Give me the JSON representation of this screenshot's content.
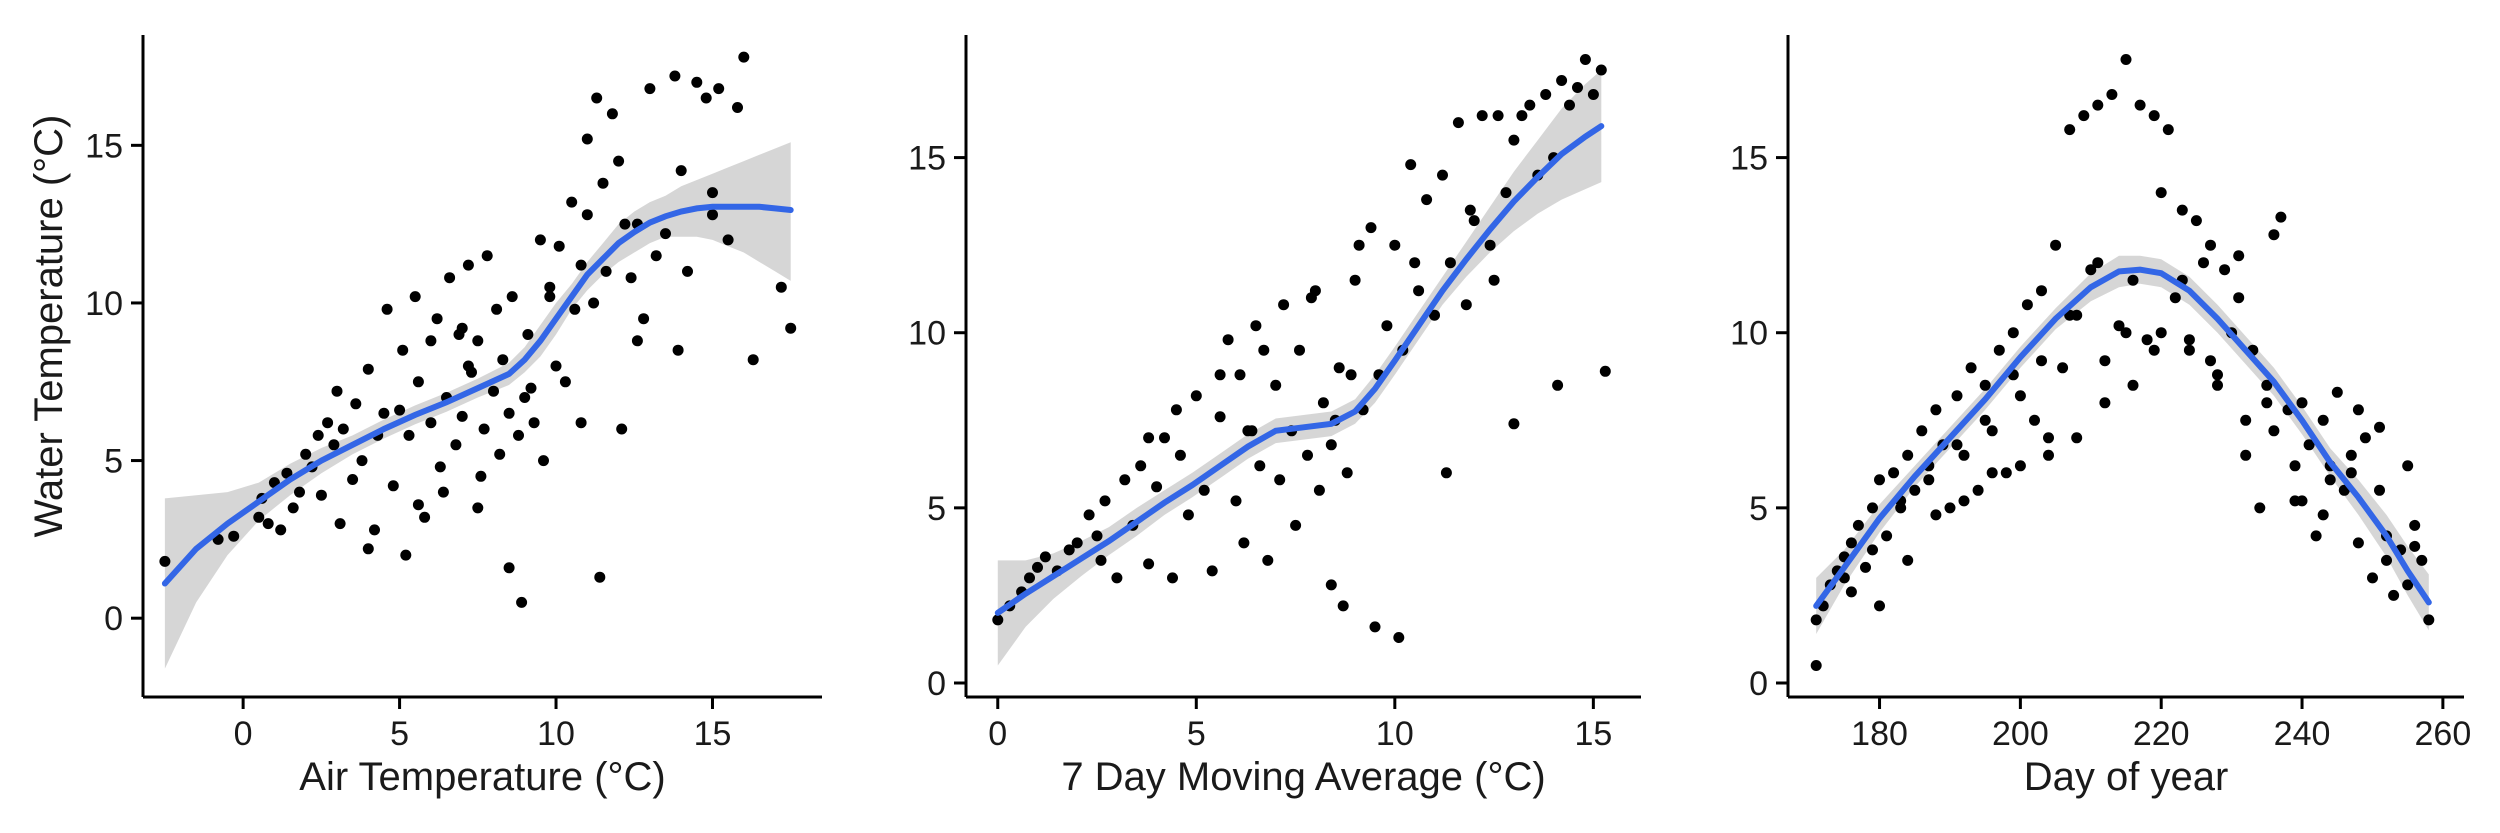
{
  "colors": {
    "points": "#000000",
    "smooth_line": "#3366E6",
    "ci_band": "#D4D4D4",
    "background": "#FFFFFF"
  },
  "chart_data": [
    {
      "type": "scatter",
      "title": "",
      "xlabel": "Air Temperature (°C)",
      "ylabel": "Water Temperature (°C)",
      "xlim": [
        -3.2,
        18.5
      ],
      "ylim": [
        -2.5,
        18.5
      ],
      "xticks": [
        0,
        5,
        10,
        15
      ],
      "yticks": [
        0,
        5,
        10,
        15
      ],
      "grid": false,
      "series": [
        {
          "kind": "points",
          "x": [
            -2.5,
            -0.8,
            -0.3,
            0.5,
            0.6,
            0.8,
            1.0,
            1.2,
            1.4,
            1.6,
            1.8,
            2.0,
            2.2,
            2.4,
            2.5,
            2.7,
            2.9,
            3.0,
            3.2,
            3.5,
            3.6,
            3.8,
            4.0,
            4.2,
            4.3,
            4.5,
            4.6,
            4.8,
            5.0,
            5.1,
            5.2,
            5.3,
            5.5,
            5.6,
            5.8,
            6.0,
            6.0,
            6.2,
            6.3,
            6.5,
            6.6,
            6.8,
            7.0,
            7.0,
            7.2,
            7.3,
            7.5,
            7.5,
            7.7,
            7.8,
            8.0,
            8.1,
            8.2,
            8.3,
            8.5,
            8.6,
            8.8,
            9.0,
            9.1,
            9.3,
            9.5,
            9.6,
            9.8,
            10.0,
            10.1,
            10.3,
            10.5,
            10.6,
            10.8,
            11.0,
            11.0,
            11.2,
            11.3,
            11.5,
            11.6,
            11.8,
            12.0,
            12.2,
            12.4,
            12.6,
            12.8,
            13.0,
            13.2,
            13.5,
            13.8,
            14.0,
            14.2,
            14.5,
            14.8,
            15.0,
            15.2,
            15.5,
            15.8,
            16.0,
            16.3,
            17.2,
            17.5,
            8.5,
            8.9,
            11.4,
            4.0,
            5.6,
            3.1,
            7.2,
            6.4,
            9.8,
            12.1,
            12.6,
            15.0,
            13.9,
            10.8,
            6.9,
            7.6,
            9.2
          ],
          "y": [
            1.8,
            2.5,
            2.6,
            3.2,
            3.8,
            3.0,
            4.3,
            2.8,
            4.6,
            3.5,
            4.0,
            5.2,
            4.8,
            5.8,
            3.9,
            6.2,
            5.5,
            7.2,
            6.0,
            4.4,
            6.8,
            5.0,
            7.9,
            2.8,
            5.8,
            6.5,
            9.8,
            4.2,
            6.6,
            8.5,
            2.0,
            5.8,
            10.2,
            7.5,
            3.2,
            8.8,
            6.2,
            9.5,
            4.8,
            7.0,
            10.8,
            5.5,
            9.2,
            6.4,
            11.2,
            7.8,
            3.5,
            8.8,
            6.0,
            11.5,
            7.2,
            9.8,
            5.2,
            8.2,
            6.5,
            10.2,
            5.8,
            7.0,
            9.0,
            6.2,
            12.0,
            5.0,
            10.5,
            8.0,
            11.8,
            7.5,
            13.2,
            9.8,
            11.2,
            15.2,
            12.8,
            10.0,
            16.5,
            13.8,
            11.0,
            16.0,
            14.5,
            12.5,
            10.8,
            8.8,
            9.5,
            16.8,
            11.5,
            12.2,
            17.2,
            14.2,
            11.0,
            17.0,
            16.5,
            13.5,
            16.8,
            12.0,
            16.2,
            17.8,
            8.2,
            10.5,
            9.2,
            1.6,
            0.5,
            1.3,
            2.2,
            3.6,
            3.0,
            8.0,
            4.0,
            10.2,
            6.0,
            12.5,
            12.8,
            8.5,
            6.2,
            9.0,
            4.5,
            7.3
          ]
        },
        {
          "kind": "smooth",
          "x": [
            -2.5,
            -1.5,
            -0.5,
            0.5,
            1.5,
            2.5,
            3.5,
            4.5,
            5.5,
            6.5,
            7.5,
            8.5,
            9.0,
            9.5,
            10.0,
            10.5,
            11.0,
            11.5,
            12.0,
            12.5,
            13.0,
            13.5,
            14.0,
            14.5,
            15.0,
            15.5,
            16.0,
            16.5,
            17.0,
            17.5
          ],
          "y": [
            1.1,
            2.2,
            3.0,
            3.7,
            4.4,
            5.0,
            5.5,
            6.0,
            6.45,
            6.85,
            7.3,
            7.75,
            8.2,
            8.8,
            9.5,
            10.2,
            10.9,
            11.4,
            11.9,
            12.25,
            12.55,
            12.75,
            12.9,
            13.0,
            13.05,
            13.05,
            13.05,
            13.05,
            13.0,
            12.95
          ],
          "lower": [
            -1.6,
            0.5,
            2.0,
            3.1,
            3.9,
            4.6,
            5.2,
            5.7,
            6.15,
            6.55,
            7.0,
            7.4,
            7.8,
            8.3,
            9.0,
            9.8,
            10.4,
            10.9,
            11.3,
            11.6,
            11.9,
            12.1,
            12.1,
            12.1,
            12.0,
            11.8,
            11.6,
            11.3,
            11.0,
            10.7
          ],
          "upper": [
            3.8,
            3.9,
            4.0,
            4.3,
            4.9,
            5.4,
            5.8,
            6.3,
            6.75,
            7.15,
            7.6,
            8.1,
            8.6,
            9.3,
            10.0,
            10.6,
            11.3,
            11.9,
            12.5,
            12.9,
            13.2,
            13.4,
            13.7,
            13.9,
            14.1,
            14.3,
            14.5,
            14.7,
            14.9,
            15.1
          ]
        }
      ]
    },
    {
      "type": "scatter",
      "title": "",
      "xlabel": "7 Day Moving Average (°C)",
      "ylabel": "",
      "xlim": [
        -0.8,
        16.2
      ],
      "ylim": [
        -0.4,
        18.5
      ],
      "xticks": [
        0,
        5,
        10,
        15
      ],
      "yticks": [
        0,
        5,
        10,
        15
      ],
      "grid": false,
      "series": [
        {
          "kind": "points",
          "x": [
            0.0,
            0.3,
            0.6,
            0.8,
            1.0,
            1.2,
            1.5,
            1.8,
            2.0,
            2.3,
            2.5,
            2.7,
            3.0,
            3.2,
            3.4,
            3.6,
            3.8,
            4.0,
            4.2,
            4.4,
            4.6,
            4.8,
            5.0,
            5.2,
            5.4,
            5.6,
            5.8,
            6.0,
            6.1,
            6.2,
            6.4,
            6.5,
            6.6,
            6.8,
            7.0,
            7.1,
            7.2,
            7.4,
            7.5,
            7.6,
            7.8,
            8.0,
            8.1,
            8.2,
            8.4,
            8.5,
            8.6,
            8.8,
            9.0,
            9.2,
            9.4,
            9.6,
            9.8,
            10.0,
            10.2,
            10.4,
            10.6,
            10.8,
            11.0,
            11.2,
            11.4,
            11.6,
            11.8,
            12.0,
            12.2,
            12.4,
            12.6,
            12.8,
            13.0,
            13.2,
            13.4,
            13.6,
            13.8,
            14.0,
            14.2,
            14.4,
            14.6,
            14.8,
            15.0,
            15.2,
            8.4,
            8.7,
            9.5,
            10.1,
            13.0,
            14.1,
            15.3,
            11.3,
            3.8,
            4.5,
            5.6,
            6.7,
            7.9,
            9.1,
            10.5,
            12.5,
            6.3,
            8.9,
            11.9,
            2.6
          ],
          "y": [
            1.8,
            2.2,
            2.6,
            3.0,
            3.3,
            3.6,
            3.2,
            3.8,
            4.0,
            4.8,
            4.2,
            5.2,
            3.0,
            5.8,
            4.5,
            6.2,
            3.4,
            5.6,
            7.0,
            3.0,
            6.5,
            4.8,
            8.2,
            5.5,
            3.2,
            7.6,
            9.8,
            5.2,
            8.8,
            4.0,
            7.2,
            10.2,
            6.2,
            3.5,
            8.5,
            5.8,
            10.8,
            7.2,
            4.5,
            9.5,
            6.5,
            11.2,
            5.5,
            8.0,
            6.8,
            7.5,
            9.0,
            6.0,
            11.5,
            7.8,
            13.0,
            8.8,
            10.2,
            12.5,
            9.5,
            14.8,
            11.2,
            13.8,
            10.5,
            14.5,
            12.0,
            16.0,
            10.8,
            13.2,
            16.2,
            12.5,
            16.2,
            14.0,
            15.5,
            16.2,
            16.5,
            14.5,
            16.8,
            15.0,
            17.2,
            16.5,
            17.0,
            17.8,
            16.8,
            17.5,
            2.8,
            2.2,
            1.6,
            1.3,
            7.4,
            8.5,
            8.9,
            6.0,
            7.0,
            7.8,
            8.8,
            9.5,
            11.0,
            12.5,
            12.0,
            11.5,
            7.2,
            8.8,
            13.5,
            3.5
          ]
        },
        {
          "kind": "smooth",
          "x": [
            0.0,
            0.7,
            1.4,
            2.1,
            2.8,
            3.5,
            4.2,
            4.9,
            5.6,
            6.3,
            7.0,
            7.7,
            8.4,
            9.0,
            9.5,
            10.0,
            10.6,
            11.2,
            11.8,
            12.4,
            13.0,
            13.6,
            14.2,
            14.8,
            15.2
          ],
          "y": [
            2.0,
            2.55,
            3.05,
            3.55,
            4.05,
            4.6,
            5.15,
            5.65,
            6.2,
            6.75,
            7.2,
            7.3,
            7.4,
            7.75,
            8.4,
            9.2,
            10.2,
            11.2,
            12.1,
            12.95,
            13.75,
            14.45,
            15.1,
            15.6,
            15.9
          ],
          "lower": [
            0.5,
            1.6,
            2.4,
            3.05,
            3.65,
            4.2,
            4.8,
            5.3,
            5.85,
            6.4,
            6.85,
            6.95,
            7.05,
            7.4,
            8.0,
            8.8,
            9.8,
            10.8,
            11.6,
            12.3,
            12.9,
            13.4,
            13.8,
            14.1,
            14.3
          ],
          "upper": [
            3.5,
            3.5,
            3.7,
            4.05,
            4.45,
            5.0,
            5.5,
            6.0,
            6.55,
            7.1,
            7.55,
            7.65,
            7.75,
            8.1,
            8.8,
            9.6,
            10.6,
            11.6,
            12.6,
            13.6,
            14.6,
            15.5,
            16.4,
            17.1,
            17.5
          ]
        }
      ]
    },
    {
      "type": "scatter",
      "title": "",
      "xlabel": "Day of year",
      "ylabel": "",
      "xlim": [
        167,
        263
      ],
      "ylim": [
        -0.4,
        18.5
      ],
      "xticks": [
        180,
        200,
        220,
        240,
        260
      ],
      "yticks": [
        0,
        5,
        10,
        15
      ],
      "grid": false,
      "series": [
        {
          "kind": "points",
          "x": [
            171,
            172,
            173,
            174,
            175,
            176,
            177,
            178,
            179,
            180,
            181,
            182,
            183,
            184,
            185,
            186,
            187,
            188,
            189,
            190,
            191,
            192,
            193,
            194,
            195,
            196,
            197,
            198,
            199,
            200,
            201,
            202,
            203,
            204,
            205,
            206,
            207,
            208,
            209,
            210,
            211,
            212,
            213,
            214,
            215,
            216,
            217,
            218,
            219,
            220,
            221,
            222,
            223,
            224,
            225,
            226,
            227,
            228,
            229,
            230,
            231,
            232,
            233,
            234,
            235,
            236,
            237,
            238,
            239,
            240,
            241,
            242,
            243,
            244,
            245,
            246,
            247,
            248,
            249,
            250,
            251,
            252,
            253,
            254,
            255,
            256,
            257,
            258,
            171,
            175,
            179,
            183,
            187,
            191,
            195,
            199,
            203,
            207,
            211,
            215,
            219,
            223,
            227,
            231,
            235,
            239,
            243,
            247,
            251,
            255,
            204,
            208,
            212,
            216,
            220,
            224,
            228,
            232,
            236,
            240,
            244,
            248,
            252,
            256,
            200,
            196,
            192,
            188,
            184,
            180,
            176
          ],
          "y": [
            0.5,
            2.2,
            2.8,
            3.2,
            3.6,
            4.0,
            4.5,
            3.3,
            5.0,
            5.8,
            4.2,
            6.0,
            5.2,
            6.5,
            5.5,
            7.2,
            6.2,
            7.8,
            6.8,
            5.0,
            8.2,
            6.5,
            9.0,
            5.5,
            8.5,
            7.2,
            9.5,
            6.0,
            10.0,
            8.2,
            10.8,
            7.5,
            11.2,
            6.5,
            12.5,
            9.0,
            15.8,
            10.5,
            16.2,
            11.8,
            16.5,
            9.2,
            16.8,
            10.2,
            17.8,
            11.5,
            16.5,
            9.8,
            16.2,
            14.0,
            15.8,
            11.0,
            13.5,
            9.5,
            13.2,
            12.0,
            12.5,
            8.5,
            11.8,
            10.0,
            11.0,
            6.5,
            9.5,
            5.0,
            8.5,
            12.8,
            13.3,
            7.8,
            5.2,
            8.0,
            6.8,
            4.2,
            7.5,
            5.8,
            8.3,
            5.5,
            6.5,
            4.0,
            7.0,
            3.0,
            5.5,
            4.2,
            2.5,
            3.8,
            2.8,
            4.5,
            3.5,
            1.8,
            1.8,
            3.0,
            3.8,
            5.0,
            5.8,
            6.8,
            7.5,
            8.8,
            9.2,
            10.5,
            12.0,
            10.0,
            9.5,
            11.5,
            9.2,
            12.2,
            8.0,
            6.2,
            4.8,
            6.0,
            7.3,
            6.2,
            7.0,
            7.0,
            8.0,
            8.5,
            10.0,
            9.8,
            8.8,
            7.5,
            7.2,
            5.2,
            6.2,
            7.8,
            3.5,
            3.9,
            6.2,
            6.0,
            5.2,
            4.8,
            3.5,
            2.2,
            2.6
          ]
        },
        {
          "kind": "smooth",
          "x": [
            171,
            175,
            180,
            185,
            190,
            195,
            200,
            205,
            210,
            214,
            217,
            220,
            224,
            228,
            232,
            236,
            240,
            244,
            248,
            252,
            255,
            258
          ],
          "y": [
            2.2,
            3.3,
            4.7,
            5.9,
            7.0,
            8.1,
            9.3,
            10.4,
            11.3,
            11.75,
            11.8,
            11.7,
            11.2,
            10.4,
            9.5,
            8.6,
            7.5,
            6.3,
            5.3,
            4.2,
            3.2,
            2.3
          ],
          "lower": [
            1.4,
            2.8,
            4.3,
            5.6,
            6.7,
            7.8,
            9.0,
            10.1,
            10.9,
            11.3,
            11.4,
            11.3,
            10.8,
            10.0,
            9.1,
            8.2,
            7.1,
            5.9,
            4.8,
            3.6,
            2.5,
            1.5
          ],
          "upper": [
            3.0,
            3.8,
            5.1,
            6.2,
            7.3,
            8.4,
            9.6,
            10.7,
            11.7,
            12.2,
            12.2,
            12.1,
            11.6,
            10.8,
            9.9,
            9.0,
            7.9,
            6.7,
            5.8,
            4.8,
            3.9,
            3.1
          ]
        }
      ]
    }
  ]
}
